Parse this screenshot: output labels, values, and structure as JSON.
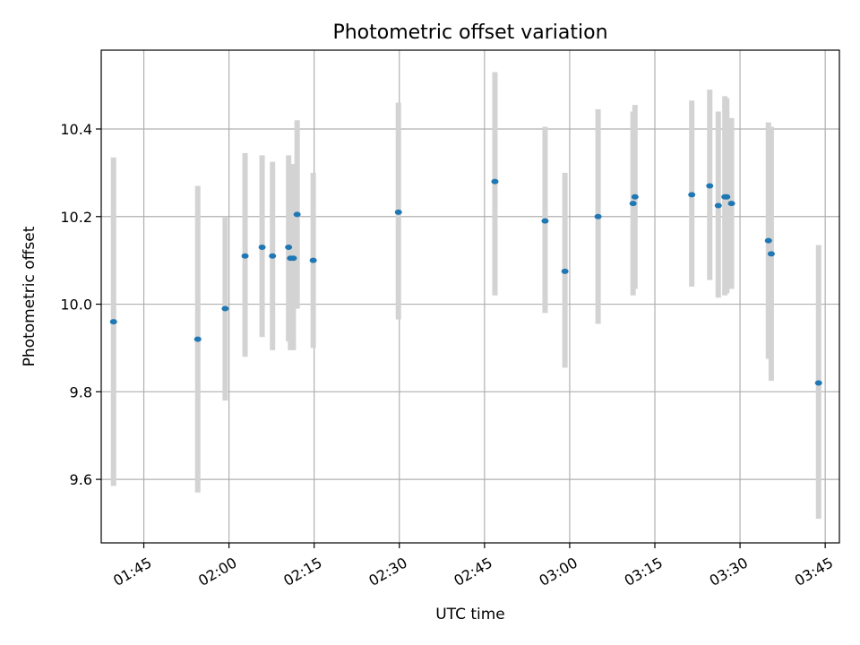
{
  "chart_data": {
    "type": "scatter",
    "title": "Photometric offset variation",
    "xlabel": "UTC time",
    "ylabel": "Photometric offset",
    "x_axis": {
      "unit": "time",
      "range": [
        "01:37:30",
        "03:47:30"
      ],
      "ticks": [
        "01:45",
        "02:00",
        "02:15",
        "02:30",
        "02:45",
        "03:00",
        "03:15",
        "03:30",
        "03:45"
      ]
    },
    "y_axis": {
      "range": [
        9.455,
        10.58
      ],
      "ticks": [
        9.6,
        9.8,
        10.0,
        10.2,
        10.4
      ],
      "tick_labels": [
        "9.6",
        "9.8",
        "10.0",
        "10.2",
        "10.4"
      ]
    },
    "grid": true,
    "error_bar_color": "#d3d3d3",
    "marker_color": "#1f77b4",
    "points": [
      {
        "time": "01:39:40",
        "y": 9.96,
        "ylow": 9.585,
        "yhigh": 10.335
      },
      {
        "time": "01:54:30",
        "y": 9.92,
        "ylow": 9.57,
        "yhigh": 10.27
      },
      {
        "time": "01:59:20",
        "y": 9.99,
        "ylow": 9.78,
        "yhigh": 10.2
      },
      {
        "time": "02:02:50",
        "y": 10.11,
        "ylow": 9.88,
        "yhigh": 10.345
      },
      {
        "time": "02:05:50",
        "y": 10.13,
        "ylow": 9.925,
        "yhigh": 10.34
      },
      {
        "time": "02:07:40",
        "y": 10.11,
        "ylow": 9.895,
        "yhigh": 10.325
      },
      {
        "time": "02:10:30",
        "y": 10.13,
        "ylow": 9.915,
        "yhigh": 10.34
      },
      {
        "time": "02:10:50",
        "y": 10.105,
        "ylow": 9.895,
        "yhigh": 10.32
      },
      {
        "time": "02:11:20",
        "y": 10.105,
        "ylow": 9.895,
        "yhigh": 10.32
      },
      {
        "time": "02:12:00",
        "y": 10.205,
        "ylow": 9.99,
        "yhigh": 10.42
      },
      {
        "time": "02:14:50",
        "y": 10.1,
        "ylow": 9.9,
        "yhigh": 10.3
      },
      {
        "time": "02:29:50",
        "y": 10.21,
        "ylow": 9.965,
        "yhigh": 10.46
      },
      {
        "time": "02:46:50",
        "y": 10.28,
        "ylow": 10.02,
        "yhigh": 10.53
      },
      {
        "time": "02:55:40",
        "y": 10.19,
        "ylow": 9.98,
        "yhigh": 10.405
      },
      {
        "time": "02:59:10",
        "y": 10.075,
        "ylow": 9.855,
        "yhigh": 10.3
      },
      {
        "time": "03:05:00",
        "y": 10.2,
        "ylow": 9.955,
        "yhigh": 10.445
      },
      {
        "time": "03:11:10",
        "y": 10.23,
        "ylow": 10.02,
        "yhigh": 10.44
      },
      {
        "time": "03:11:30",
        "y": 10.245,
        "ylow": 10.035,
        "yhigh": 10.455
      },
      {
        "time": "03:21:30",
        "y": 10.25,
        "ylow": 10.04,
        "yhigh": 10.465
      },
      {
        "time": "03:24:40",
        "y": 10.27,
        "ylow": 10.055,
        "yhigh": 10.49
      },
      {
        "time": "03:26:10",
        "y": 10.225,
        "ylow": 10.015,
        "yhigh": 10.44
      },
      {
        "time": "03:27:20",
        "y": 10.245,
        "ylow": 10.02,
        "yhigh": 10.475
      },
      {
        "time": "03:27:40",
        "y": 10.245,
        "ylow": 10.025,
        "yhigh": 10.47
      },
      {
        "time": "03:28:30",
        "y": 10.23,
        "ylow": 10.035,
        "yhigh": 10.425
      },
      {
        "time": "03:35:00",
        "y": 10.145,
        "ylow": 9.875,
        "yhigh": 10.415
      },
      {
        "time": "03:35:30",
        "y": 10.115,
        "ylow": 9.825,
        "yhigh": 10.405
      },
      {
        "time": "03:43:50",
        "y": 9.82,
        "ylow": 9.51,
        "yhigh": 10.135
      }
    ]
  }
}
